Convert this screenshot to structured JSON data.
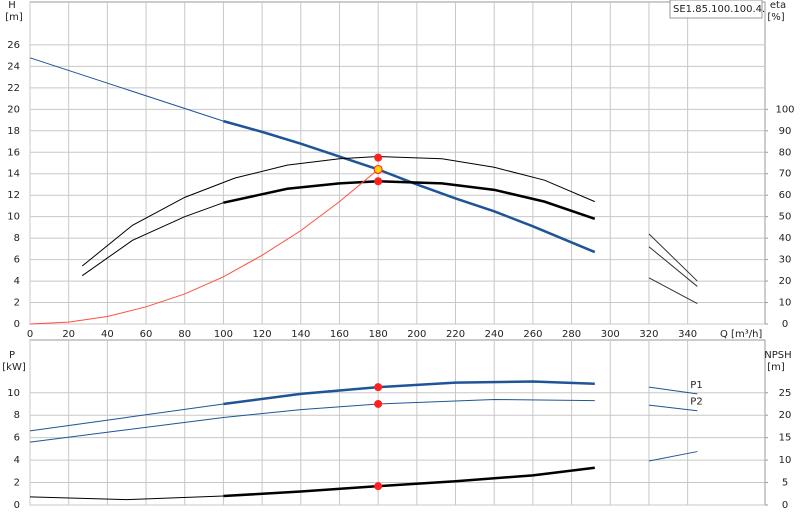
{
  "chart_data": [
    {
      "type": "line",
      "title": "SE1.85.100.100.4.",
      "ylabel": "H",
      "yunit": "[m]",
      "y2label": "eta",
      "y2unit": "[%]",
      "xlabel": "Q [m³/h]",
      "xlim": [
        0,
        380
      ],
      "ylim": [
        0,
        30
      ],
      "y2lim": [
        0,
        150
      ],
      "xticks": [
        0,
        20,
        40,
        60,
        80,
        100,
        120,
        140,
        160,
        180,
        200,
        220,
        240,
        260,
        280,
        300,
        320,
        340
      ],
      "yticks": [
        0,
        2,
        4,
        6,
        8,
        10,
        12,
        14,
        16,
        18,
        20,
        22,
        24,
        26
      ],
      "y2ticks": [
        0,
        10,
        20,
        30,
        40,
        50,
        60,
        70,
        80,
        90,
        100
      ],
      "grid": true,
      "series": [
        {
          "color": "#1f5596",
          "width": 1,
          "x": [
            0,
            100
          ],
          "values": [
            24.8,
            18.9
          ]
        },
        {
          "color": "#1f5596",
          "width": 2.5,
          "x": [
            100,
            120,
            140,
            160,
            180,
            200,
            220,
            240,
            260,
            280,
            292
          ],
          "values": [
            18.9,
            17.9,
            16.8,
            15.6,
            14.4,
            13.0,
            11.7,
            10.5,
            9.1,
            7.6,
            6.7
          ]
        },
        {
          "color": "#000000",
          "width": 1,
          "axis": "y2",
          "x": [
            27,
            53,
            80,
            106,
            133,
            160,
            180,
            213,
            240,
            266,
            292
          ],
          "values": [
            27,
            46,
            59,
            68,
            74,
            77,
            78,
            77,
            73,
            67,
            57
          ]
        },
        {
          "color": "#000000",
          "width": 1,
          "axis": "y2",
          "x": [
            27,
            53,
            80,
            100
          ],
          "values": [
            22.5,
            39,
            50,
            56.5
          ]
        },
        {
          "color": "#000000",
          "width": 2.5,
          "axis": "y2",
          "x": [
            100,
            133,
            160,
            180,
            213,
            240,
            266,
            292
          ],
          "values": [
            56.5,
            63,
            65.5,
            66.5,
            65.5,
            62.5,
            57,
            49
          ]
        },
        {
          "color": "#ff5040",
          "width": 1,
          "x": [
            0,
            20,
            40,
            60,
            80,
            100,
            120,
            140,
            160,
            180
          ],
          "values": [
            0,
            0.18,
            0.7,
            1.6,
            2.8,
            4.4,
            6.4,
            8.7,
            11.4,
            14.4
          ]
        },
        {
          "color": "#333333",
          "width": 1,
          "axis": "y2",
          "x": [
            320,
            345
          ],
          "values": [
            42,
            20
          ]
        },
        {
          "color": "#333333",
          "width": 1,
          "axis": "y2",
          "x": [
            320,
            345
          ],
          "values": [
            36,
            17.5
          ]
        },
        {
          "color": "#333333",
          "width": 1,
          "axis": "y2",
          "x": [
            320,
            345
          ],
          "values": [
            21.5,
            9.5
          ]
        },
        {
          "color": "#ff2020",
          "marker": true,
          "axis": "y2",
          "x": [
            180,
            180
          ],
          "values": [
            77.5,
            66.5
          ]
        },
        {
          "color": "#ff2020",
          "marker_fill": "#ffd200",
          "marker": true,
          "x": [
            180
          ],
          "values": [
            14.4
          ]
        }
      ]
    },
    {
      "type": "line",
      "ylabel": "P",
      "yunit": "[kW]",
      "y2label": "NPSH",
      "y2unit": "[m]",
      "xlim": [
        0,
        380
      ],
      "ylim": [
        0,
        14.7
      ],
      "y2lim": [
        0,
        36.75
      ],
      "yticks": [
        0,
        2,
        4,
        6,
        8,
        10
      ],
      "y2ticks": [
        0,
        5,
        10,
        15,
        20,
        25
      ],
      "grid": true,
      "series": [
        {
          "color": "#1f5596",
          "width": 1,
          "x": [
            0,
            50,
            100
          ],
          "values": [
            6.6,
            7.8,
            9.0
          ]
        },
        {
          "color": "#1f5596",
          "width": 2.5,
          "x": [
            100,
            140,
            180,
            220,
            260,
            292
          ],
          "values": [
            9.0,
            9.9,
            10.5,
            10.9,
            11.0,
            10.8
          ]
        },
        {
          "color": "#1f5596",
          "width": 1,
          "x": [
            0,
            50,
            100,
            140,
            180,
            240,
            292
          ],
          "values": [
            5.6,
            6.7,
            7.8,
            8.5,
            9.0,
            9.4,
            9.3
          ]
        },
        {
          "color": "#000000",
          "width": 1,
          "axis": "y2",
          "x": [
            0,
            50,
            100
          ],
          "values": [
            1.8,
            1.2,
            2.0
          ]
        },
        {
          "color": "#000000",
          "width": 2.5,
          "axis": "y2",
          "x": [
            100,
            140,
            180,
            220,
            260,
            292
          ],
          "values": [
            2.0,
            3.0,
            4.2,
            5.3,
            6.6,
            8.3
          ]
        },
        {
          "name": "P1",
          "color": "#1f5596",
          "width": 1,
          "x": [
            320,
            345
          ],
          "values": [
            10.5,
            9.9
          ]
        },
        {
          "name": "P2",
          "color": "#1f5596",
          "width": 1,
          "x": [
            320,
            345
          ],
          "values": [
            8.9,
            8.4
          ]
        },
        {
          "color": "#1f5596",
          "width": 1,
          "axis": "y2",
          "x": [
            320,
            345
          ],
          "values": [
            9.8,
            11.9
          ]
        },
        {
          "color": "#ff2020",
          "marker": true,
          "x": [
            180,
            180
          ],
          "values": [
            10.5,
            9.0
          ]
        },
        {
          "color": "#ff2020",
          "marker": true,
          "axis": "y2",
          "x": [
            180
          ],
          "values": [
            4.2
          ]
        }
      ]
    }
  ]
}
